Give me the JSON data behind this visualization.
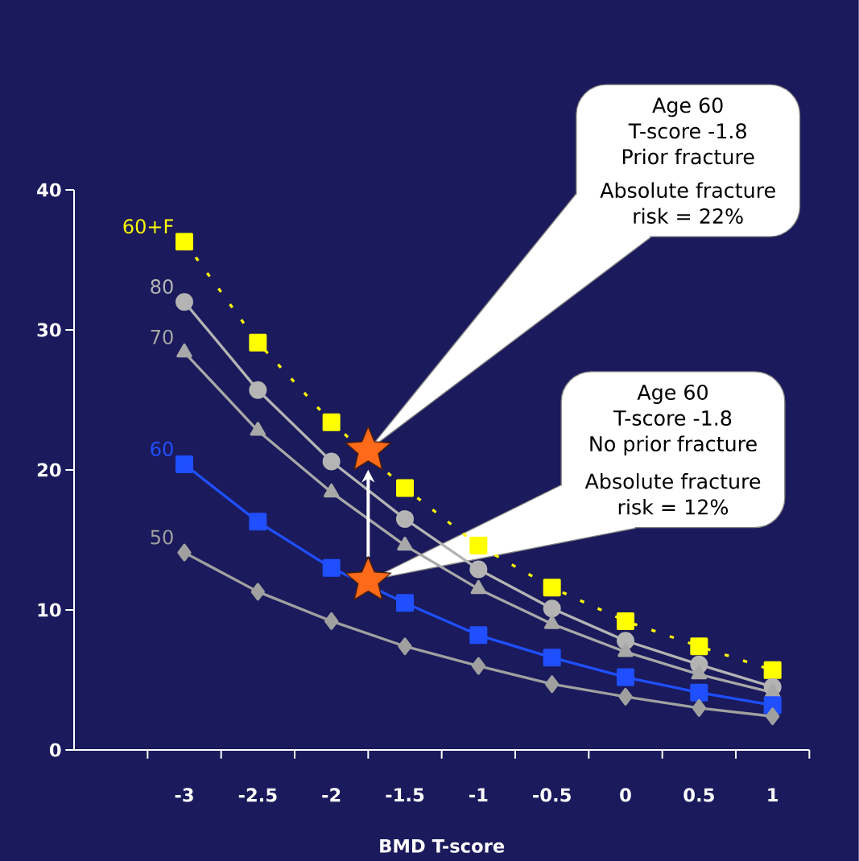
{
  "chart_data": {
    "type": "line",
    "xlabel": "BMD T-score",
    "x": [
      -3,
      -2.5,
      -2,
      -1.5,
      -1,
      -0.5,
      0,
      0.5,
      1
    ],
    "xlim": [
      -3.75,
      1.25
    ],
    "xticks": [
      {
        "value": -3.25,
        "label": null
      },
      -3,
      {
        "value": -2.75,
        "label": null
      },
      -2.5,
      {
        "value": -2.25,
        "label": null
      },
      -2,
      {
        "value": -1.75,
        "label": null
      },
      -1.5,
      {
        "value": -1.25,
        "label": null
      },
      -1,
      {
        "value": -0.75,
        "label": null
      },
      -0.5,
      {
        "value": -0.25,
        "label": null
      },
      0,
      {
        "value": 0.25,
        "label": null
      },
      0.5,
      {
        "value": 0.75,
        "label": null
      },
      1,
      {
        "value": 1.25,
        "label": null
      }
    ],
    "ylim": [
      0,
      40
    ],
    "yticks": [
      0,
      10,
      20,
      30,
      40
    ],
    "series": [
      {
        "name": "60+F",
        "color": "#ffff00",
        "marker": "square",
        "line_style": "dotted",
        "values": [
          36.3,
          29.1,
          23.4,
          18.7,
          14.6,
          11.6,
          9.2,
          7.4,
          5.7
        ]
      },
      {
        "name": "80",
        "color": "#b4b4b4",
        "marker": "circle",
        "line_style": "solid",
        "values": [
          32.0,
          25.7,
          20.6,
          16.5,
          12.9,
          10.1,
          7.8,
          6.1,
          4.5
        ]
      },
      {
        "name": "70",
        "color": "#a8a8a8",
        "marker": "triangle",
        "line_style": "solid",
        "values": [
          28.4,
          22.8,
          18.4,
          14.6,
          11.5,
          9.0,
          7.0,
          5.4,
          4.1
        ]
      },
      {
        "name": "60",
        "color": "#1f4fff",
        "marker": "square",
        "line_style": "solid",
        "values": [
          20.4,
          16.3,
          13.0,
          10.5,
          8.2,
          6.6,
          5.2,
          4.1,
          3.2
        ]
      },
      {
        "name": "50",
        "color": "#a0a0a0",
        "marker": "diamond",
        "line_style": "solid",
        "values": [
          14.1,
          11.3,
          9.2,
          7.4,
          6.0,
          4.7,
          3.8,
          3.0,
          2.4
        ]
      },
      {
        "type": "scatter",
        "color": "#ff6a1a",
        "marker": "star",
        "x": [
          -1.75,
          -1.75
        ],
        "values": [
          21.4,
          12.1
        ]
      }
    ],
    "annotations": [
      "Age 60",
      "T-score -1.8",
      "Prior fracture",
      "Absolute fracture",
      "risk = 22%",
      "Age 60",
      "T-score -1.8",
      "No prior fracture",
      "Absolute fracture",
      "risk = 12%"
    ]
  }
}
